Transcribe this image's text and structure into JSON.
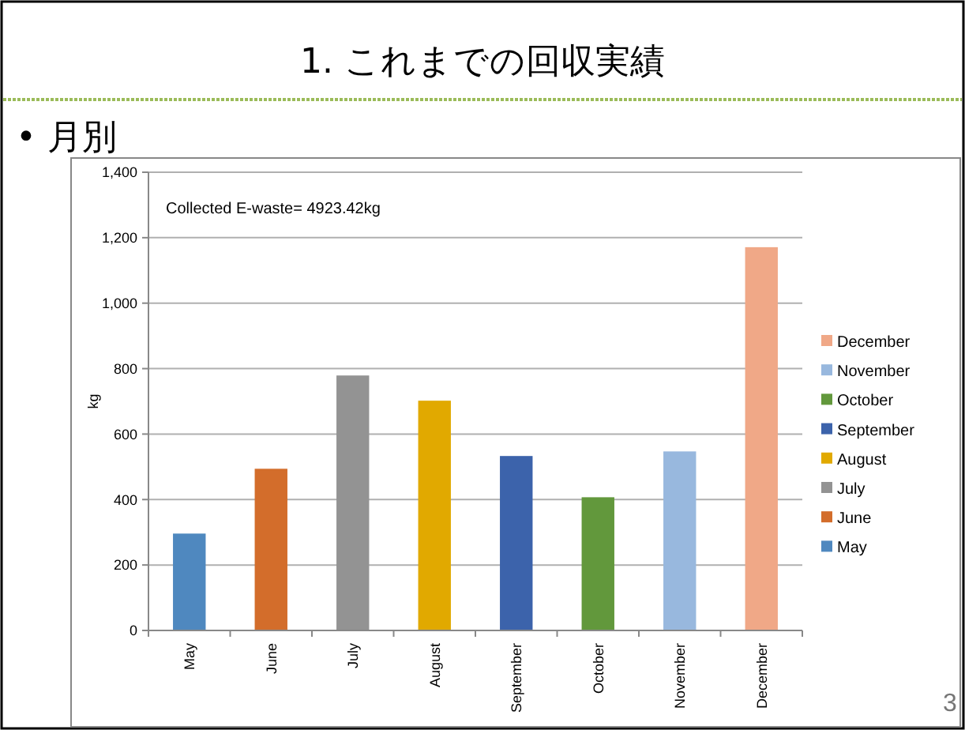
{
  "chart_data": {
    "type": "bar",
    "title": "1. これまでの回収実績",
    "subtitle": "• 月別",
    "ylabel": "kg",
    "categories": [
      "May",
      "June",
      "July",
      "August",
      "September",
      "October",
      "November",
      "December"
    ],
    "series": [
      {
        "name": "May",
        "color": "#4f88bf",
        "values": [
          296,
          null,
          null,
          null,
          null,
          null,
          null,
          null
        ]
      },
      {
        "name": "June",
        "color": "#d36d2b",
        "values": [
          null,
          494,
          null,
          null,
          null,
          null,
          null,
          null
        ]
      },
      {
        "name": "July",
        "color": "#939393",
        "values": [
          null,
          null,
          779,
          null,
          null,
          null,
          null,
          null
        ]
      },
      {
        "name": "August",
        "color": "#e1a900",
        "values": [
          null,
          null,
          null,
          702,
          null,
          null,
          null,
          null
        ]
      },
      {
        "name": "September",
        "color": "#3c63ab",
        "values": [
          null,
          null,
          null,
          null,
          533,
          null,
          null,
          null
        ]
      },
      {
        "name": "October",
        "color": "#62983c",
        "values": [
          null,
          null,
          null,
          null,
          null,
          407,
          null,
          null
        ]
      },
      {
        "name": "November",
        "color": "#98b8de",
        "values": [
          null,
          null,
          null,
          null,
          null,
          null,
          547,
          null
        ]
      },
      {
        "name": "December",
        "color": "#f0a887",
        "values": [
          null,
          null,
          null,
          null,
          null,
          null,
          null,
          1171
        ]
      }
    ],
    "ylim": [
      0,
      1400
    ],
    "yticks": [
      {
        "value": 0,
        "label": "0"
      },
      {
        "value": 200,
        "label": "200"
      },
      {
        "value": 400,
        "label": "400"
      },
      {
        "value": 600,
        "label": "600"
      },
      {
        "value": 800,
        "label": "800"
      },
      {
        "value": 1000,
        "label": "1,000"
      },
      {
        "value": 1200,
        "label": "1,200"
      },
      {
        "value": 1400,
        "label": "1,400"
      }
    ],
    "grid": "y",
    "legend": "right",
    "annotations": [
      "Collected E-waste= 4923.42kg",
      "3"
    ]
  }
}
